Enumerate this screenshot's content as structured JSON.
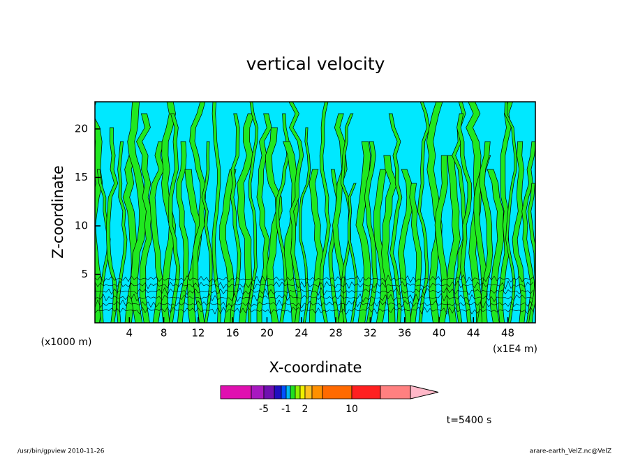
{
  "chart_data": {
    "type": "contour",
    "title": "vertical velocity",
    "x_label": "X-coordinate",
    "y_label": "Z-coordinate",
    "x_unit": "(x1000 m)",
    "x_unit_right": "(x1E4 m)",
    "xlim": [
      0,
      51.2
    ],
    "xticks": [
      4,
      8,
      12,
      16,
      20,
      24,
      28,
      32,
      36,
      40,
      44,
      48
    ],
    "ylim": [
      0,
      22.8
    ],
    "yticks": [
      5,
      10,
      15,
      20
    ],
    "colorbar": {
      "levels": [
        -10,
        -5,
        -3,
        -2,
        -1,
        -0.5,
        0,
        1,
        2,
        4,
        6,
        10,
        15,
        20
      ],
      "ticks": [
        -5,
        -1,
        2,
        10
      ],
      "colors": [
        "#e010b0",
        "#a818c0",
        "#7010b0",
        "#2010c0",
        "#0050ff",
        "#00b8f0",
        "#20e020",
        "#90f000",
        "#f0f000",
        "#ffc020",
        "#ff9000",
        "#ff6a00",
        "#ff2020",
        "#ff8080",
        "#ffb8c8"
      ]
    },
    "annotation": "t=5400 s",
    "footer_left": "/usr/bin/gpview  2010-11-26",
    "footer_right": "arare-earth_VelZ.nc@VelZ"
  }
}
